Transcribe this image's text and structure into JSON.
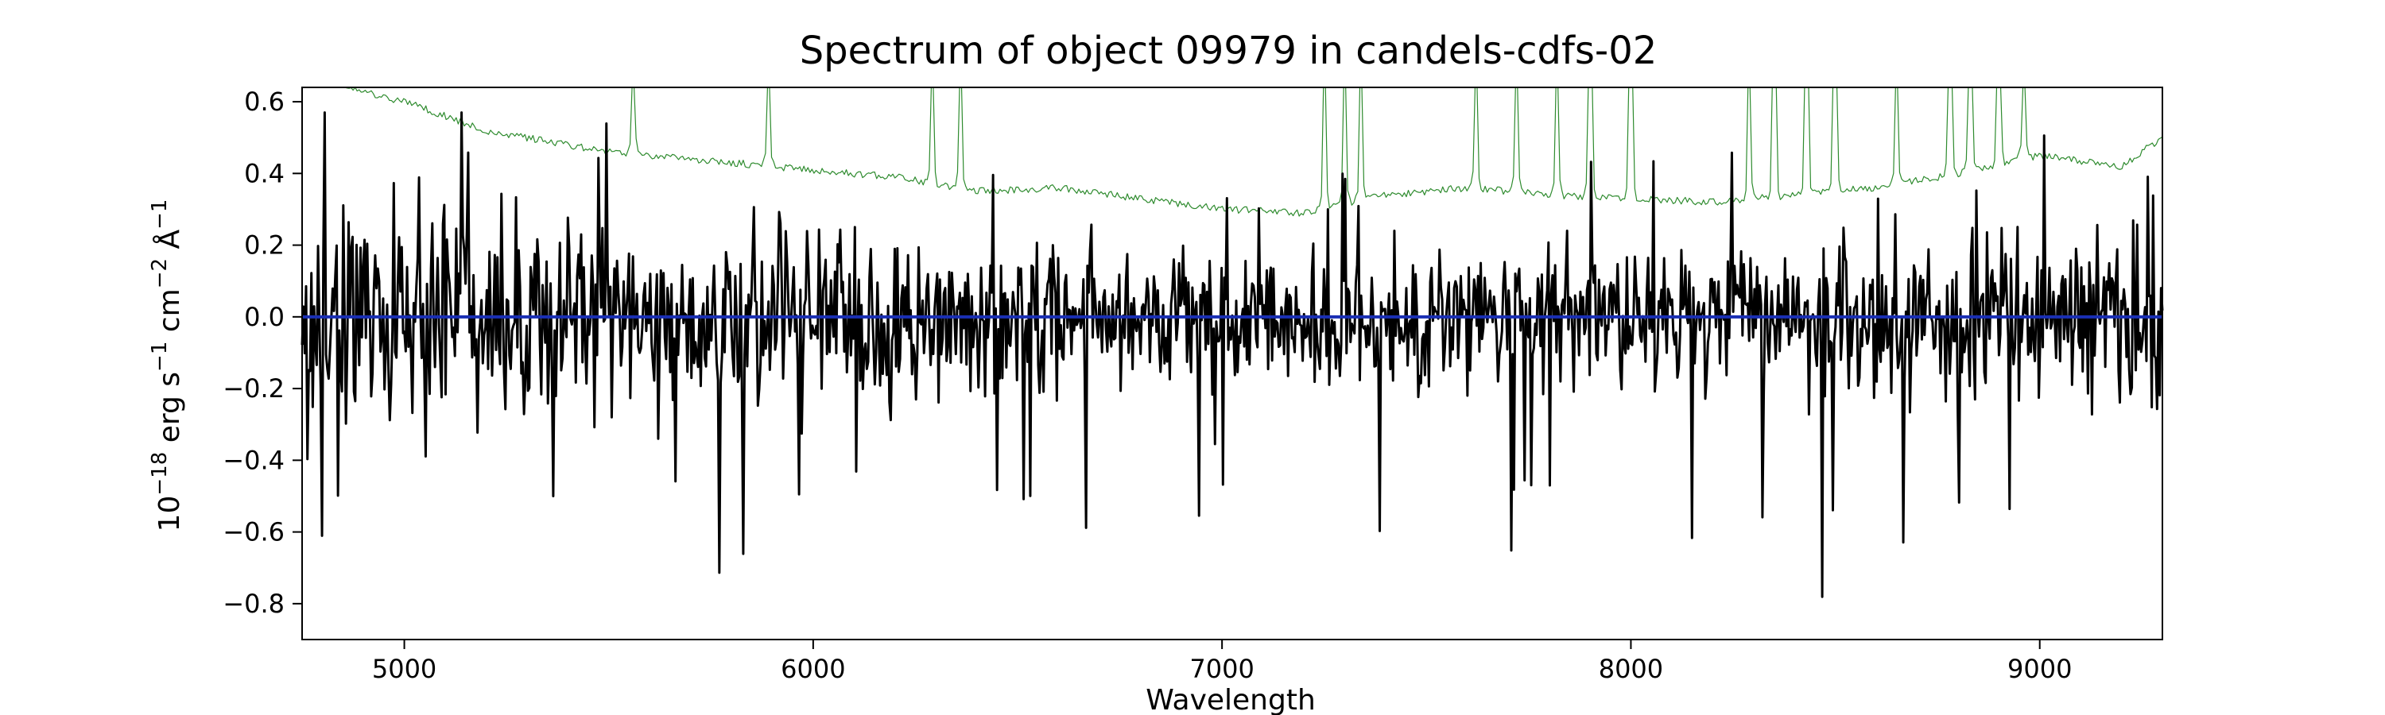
{
  "chart_data": {
    "type": "line",
    "title": "Spectrum of object 09979 in candels-cdfs-02",
    "xlabel": "Wavelength",
    "ylabel": {
      "base": "10",
      "base_exp": "−18",
      "unit_erg": " erg s",
      "exp_s": "−1",
      "unit_cm": " cm",
      "exp_cm": "−2",
      "unit_ang": " Å",
      "exp_ang": "−1"
    },
    "xlim": [
      4750,
      9300
    ],
    "ylim": [
      -0.9,
      0.64
    ],
    "x_ticks": [
      5000,
      6000,
      7000,
      8000,
      9000
    ],
    "x_tick_labels": [
      "5000",
      "6000",
      "7000",
      "8000",
      "9000"
    ],
    "y_ticks": [
      -0.8,
      -0.6,
      -0.4,
      -0.2,
      0.0,
      0.2,
      0.4,
      0.6
    ],
    "y_tick_labels": [
      "−0.8",
      "−0.6",
      "−0.4",
      "−0.2",
      "0.0",
      "0.2",
      "0.4",
      "0.6"
    ],
    "grid": false,
    "series": [
      {
        "role": "flux",
        "color": "#000000",
        "x_start": 4750,
        "x_end": 9300,
        "samples": 1400,
        "value_range": [
          -0.83,
          0.57
        ]
      },
      {
        "role": "error",
        "color": "#2e8b2e",
        "x": [
          4850,
          5000,
          5200,
          5500,
          5800,
          6000,
          6200,
          6400,
          6600,
          6800,
          7000,
          7200,
          7400,
          7600,
          7800,
          8000,
          8200,
          8400,
          8600,
          8800,
          9000,
          9200,
          9300
        ],
        "values": [
          0.64,
          0.6,
          0.52,
          0.46,
          0.43,
          0.41,
          0.39,
          0.35,
          0.36,
          0.33,
          0.3,
          0.29,
          0.34,
          0.36,
          0.34,
          0.33,
          0.32,
          0.34,
          0.36,
          0.4,
          0.45,
          0.42,
          0.5
        ],
        "spikes": [
          {
            "x": 5560,
            "value": 0.64
          },
          {
            "x": 5890,
            "value": 0.64
          },
          {
            "x": 6290,
            "value": 0.64
          },
          {
            "x": 6360,
            "value": 0.64
          },
          {
            "x": 7250,
            "value": 0.64
          },
          {
            "x": 7300,
            "value": 0.64
          },
          {
            "x": 7340,
            "value": 0.64
          },
          {
            "x": 7620,
            "value": 0.64
          },
          {
            "x": 7720,
            "value": 0.64
          },
          {
            "x": 7820,
            "value": 0.64
          },
          {
            "x": 7900,
            "value": 0.64
          },
          {
            "x": 8000,
            "value": 0.64
          },
          {
            "x": 8290,
            "value": 0.64
          },
          {
            "x": 8350,
            "value": 0.64
          },
          {
            "x": 8430,
            "value": 0.64
          },
          {
            "x": 8500,
            "value": 0.64
          },
          {
            "x": 8650,
            "value": 0.64
          },
          {
            "x": 8780,
            "value": 0.64
          },
          {
            "x": 8830,
            "value": 0.64
          },
          {
            "x": 8900,
            "value": 0.64
          },
          {
            "x": 8960,
            "value": 0.64
          }
        ]
      },
      {
        "role": "model",
        "color": "#1a2fb4",
        "x": [
          4750,
          9300
        ],
        "values": [
          0.0,
          0.0
        ]
      }
    ]
  }
}
